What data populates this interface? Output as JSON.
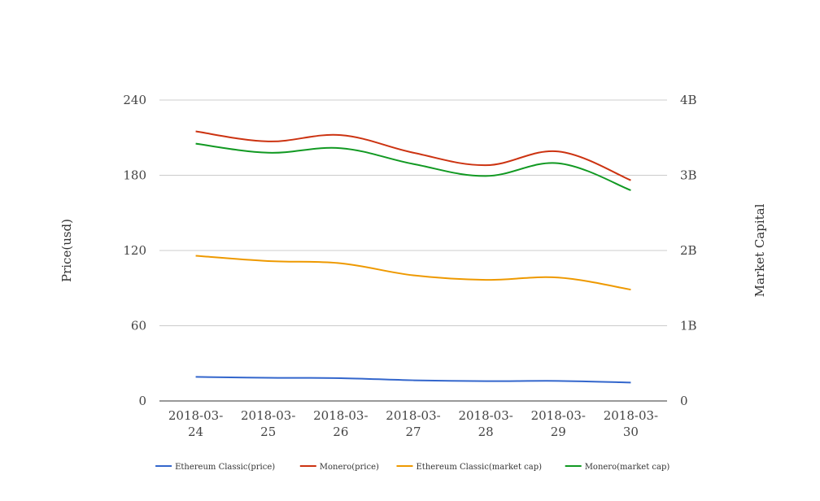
{
  "chart_data": {
    "type": "line",
    "title": "",
    "x": [
      "2018-03-24",
      "2018-03-25",
      "2018-03-26",
      "2018-03-27",
      "2018-03-28",
      "2018-03-29",
      "2018-03-30"
    ],
    "x_tick_labels": [
      [
        "2018-03-",
        "24"
      ],
      [
        "2018-03-",
        "25"
      ],
      [
        "2018-03-",
        "26"
      ],
      [
        "2018-03-",
        "27"
      ],
      [
        "2018-03-",
        "28"
      ],
      [
        "2018-03-",
        "29"
      ],
      [
        "2018-03-",
        "30"
      ]
    ],
    "ylabel": "Price(usd)",
    "ylabel_right": "Market Capital",
    "ylim": [
      0,
      240
    ],
    "ylim_right": [
      0,
      4000000000
    ],
    "y_ticks": [
      0,
      60,
      120,
      180,
      240
    ],
    "y_tick_labels": [
      "0",
      "60",
      "120",
      "180",
      "240"
    ],
    "y_right_ticks": [
      0,
      1000000000,
      2000000000,
      3000000000,
      4000000000
    ],
    "y_right_tick_labels": [
      "0",
      "1B",
      "2B",
      "3B",
      "4B"
    ],
    "grid": true,
    "legend_position": "bottom",
    "series": [
      {
        "name": "Ethereum Classic(price)",
        "axis": "left",
        "color": "#3366cc",
        "values": [
          19.2,
          18.5,
          18.2,
          16.5,
          15.8,
          16.0,
          14.7
        ]
      },
      {
        "name": "Monero(price)",
        "axis": "left",
        "color": "#cc3311",
        "values": [
          215,
          207,
          212,
          198,
          188,
          199,
          176
        ]
      },
      {
        "name": "Ethereum Classic(market cap)",
        "axis": "right",
        "color": "#ee9900",
        "values": [
          1930000000,
          1860000000,
          1830000000,
          1670000000,
          1610000000,
          1640000000,
          1480000000
        ]
      },
      {
        "name": "Monero(market cap)",
        "axis": "right",
        "color": "#119922",
        "values": [
          3420000000,
          3300000000,
          3360000000,
          3150000000,
          2990000000,
          3160000000,
          2800000000
        ]
      }
    ]
  }
}
